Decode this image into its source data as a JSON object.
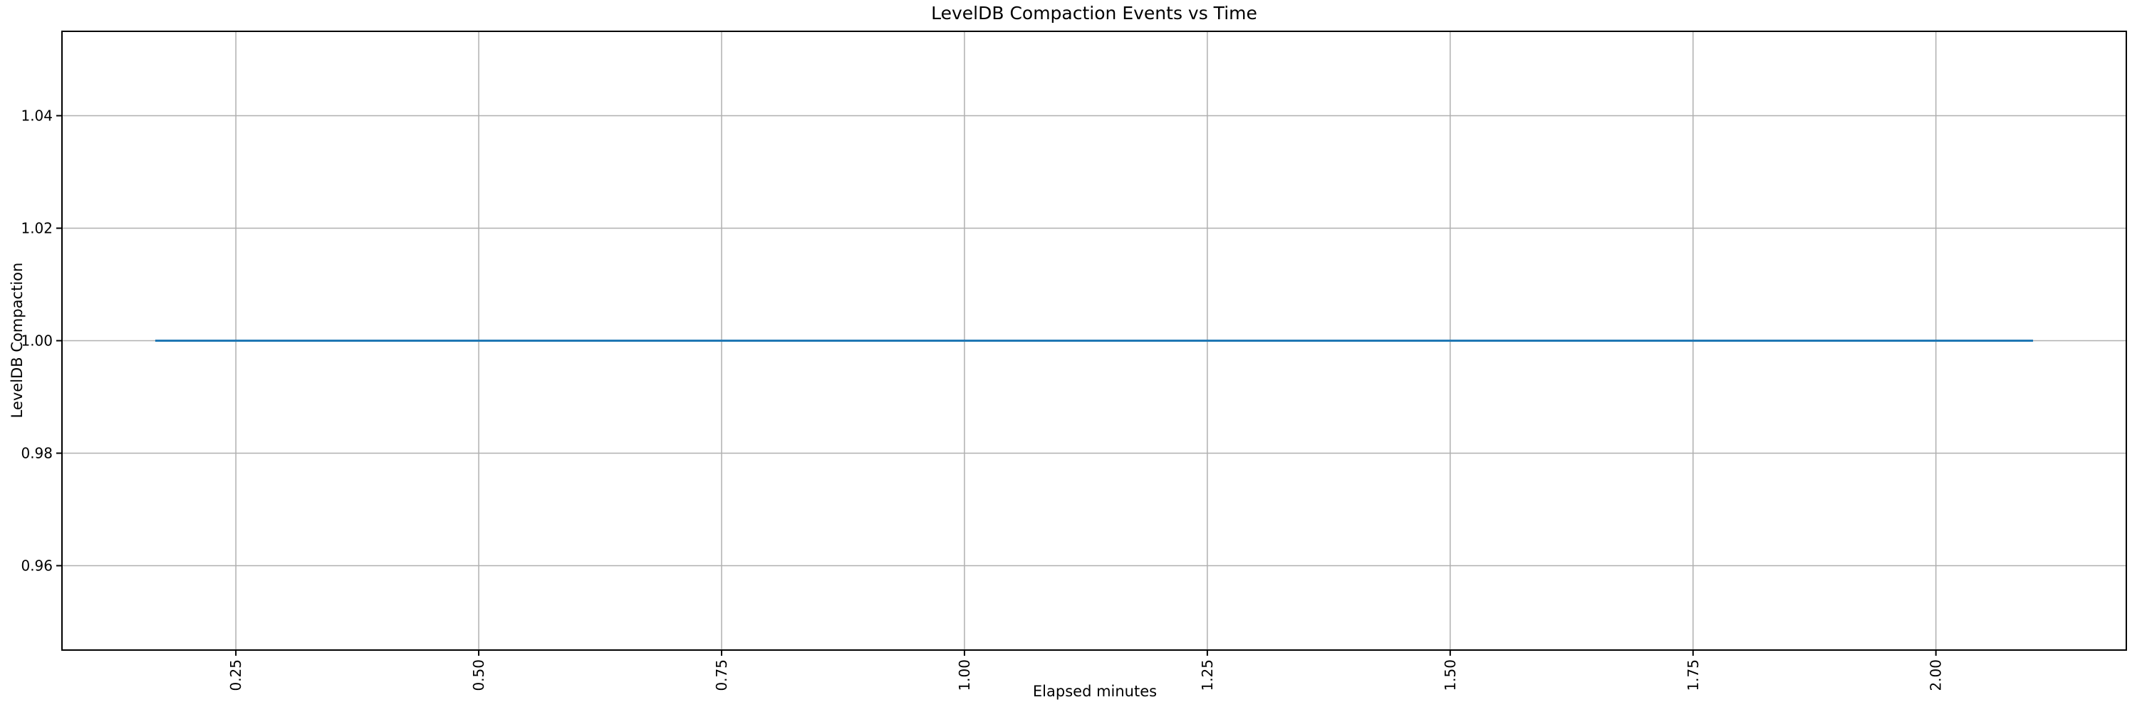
{
  "figure": {
    "background_color": "#ffffff"
  },
  "chart_data": {
    "type": "line",
    "title": "LevelDB Compaction Events vs Time",
    "xlabel": "Elapsed minutes",
    "ylabel": "LevelDB Compaction",
    "series": [
      {
        "name": "LevelDB Compaction",
        "color": "#1f77b4",
        "x": [
          0.167,
          2.1
        ],
        "y": [
          1.0,
          1.0
        ]
      }
    ],
    "xlim": [
      0.071,
      2.196
    ],
    "ylim": [
      0.945,
      1.055
    ],
    "x_ticks": [
      0.25,
      0.5,
      0.75,
      1.0,
      1.25,
      1.5,
      1.75,
      2.0
    ],
    "x_tick_labels": [
      "0.25",
      "0.50",
      "0.75",
      "1.00",
      "1.25",
      "1.50",
      "1.75",
      "2.00"
    ],
    "x_tick_rotation": 90,
    "y_ticks": [
      0.96,
      0.98,
      1.0,
      1.02,
      1.04
    ],
    "y_tick_labels": [
      "0.96",
      "0.98",
      "1.00",
      "1.02",
      "1.04"
    ],
    "grid": true,
    "grid_color": "#b0b0b0",
    "spine_color": "#000000",
    "tick_color": "#000000",
    "legend": null
  }
}
